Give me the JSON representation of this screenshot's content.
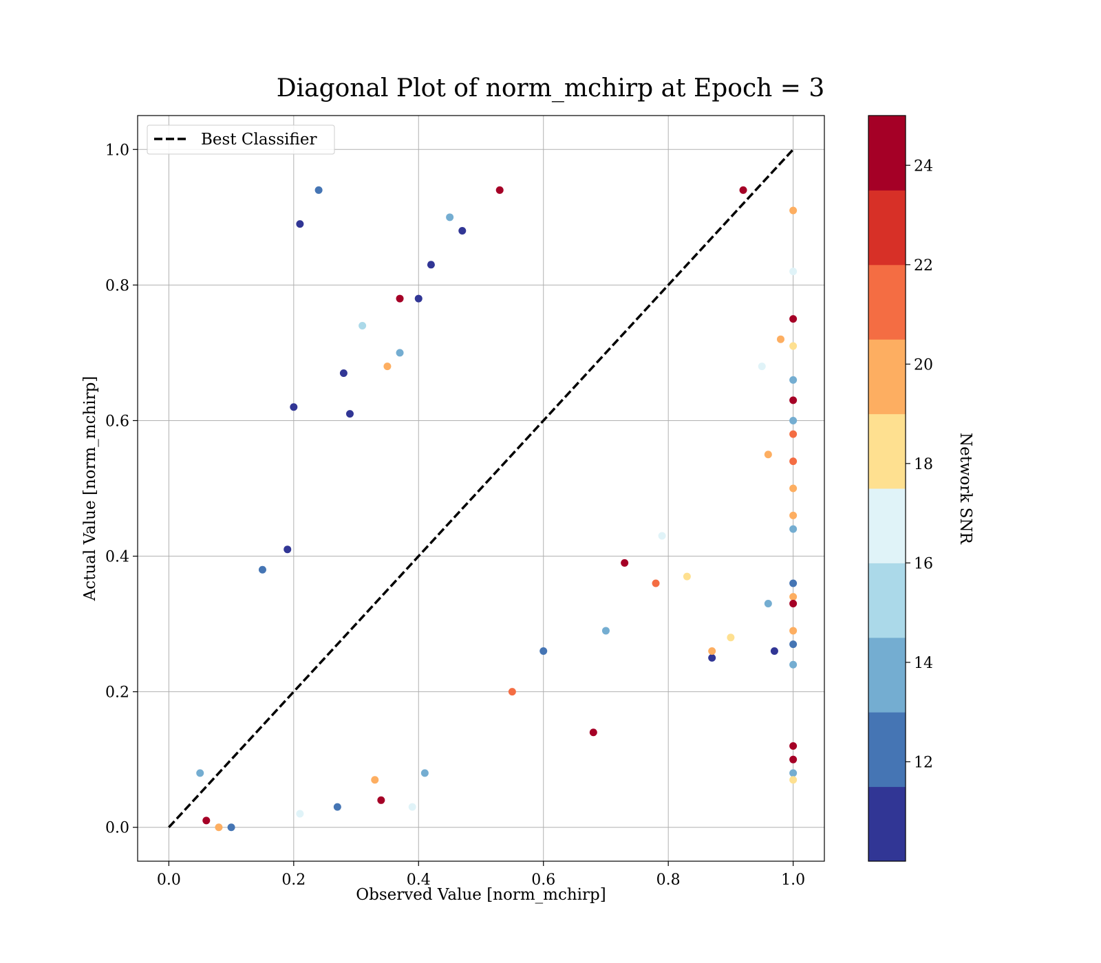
{
  "chart_data": {
    "type": "scatter",
    "title": "Diagonal Plot of norm_mchirp at Epoch = 3",
    "xlabel": "Observed Value [norm_mchirp]",
    "ylabel": "Actual Value [norm_mchirp]",
    "xlim": [
      -0.05,
      1.05
    ],
    "ylim": [
      -0.05,
      1.05
    ],
    "xticks": [
      "0.0",
      "0.2",
      "0.4",
      "0.6",
      "0.8",
      "1.0"
    ],
    "yticks": [
      "0.0",
      "0.2",
      "0.4",
      "0.6",
      "0.8",
      "1.0"
    ],
    "grid": true,
    "legend": {
      "position": "top-left",
      "entries": [
        "Best Classifier"
      ]
    },
    "reference_line": {
      "name": "Best Classifier",
      "style": "dashed",
      "color": "#000000",
      "x": [
        0,
        1
      ],
      "y": [
        0,
        1
      ]
    },
    "colorbar": {
      "label": "Network SNR",
      "range": [
        10,
        25
      ],
      "ticks": [
        "12",
        "14",
        "16",
        "18",
        "20",
        "22",
        "24"
      ],
      "bins": 10,
      "colors": [
        "#313695",
        "#4575b4",
        "#74add1",
        "#abd9e9",
        "#e0f3f8",
        "#fee090",
        "#fdae61",
        "#f46d43",
        "#d73027",
        "#a50026"
      ]
    },
    "series": [
      {
        "color_by": "Network SNR",
        "points": [
          [
            0.24,
            0.94,
            12
          ],
          [
            0.21,
            0.89,
            11
          ],
          [
            0.2,
            0.62,
            11
          ],
          [
            0.37,
            0.78,
            25
          ],
          [
            0.31,
            0.74,
            15
          ],
          [
            0.53,
            0.94,
            24
          ],
          [
            0.45,
            0.9,
            13
          ],
          [
            0.47,
            0.88,
            11
          ],
          [
            0.42,
            0.83,
            11
          ],
          [
            0.4,
            0.78,
            11
          ],
          [
            0.68,
            0.14,
            25
          ],
          [
            0.98,
            0.72,
            19
          ],
          [
            1.0,
            0.91,
            20
          ],
          [
            1.0,
            0.82,
            16
          ],
          [
            1.0,
            0.75,
            25
          ],
          [
            1.0,
            0.71,
            18
          ],
          [
            1.0,
            0.66,
            13
          ],
          [
            1.0,
            0.63,
            24
          ],
          [
            1.0,
            0.6,
            14
          ],
          [
            1.0,
            0.58,
            21
          ],
          [
            1.0,
            0.54,
            21
          ],
          [
            1.0,
            0.5,
            19
          ],
          [
            1.0,
            0.46,
            20
          ],
          [
            1.0,
            0.44,
            14
          ],
          [
            1.0,
            0.36,
            12
          ],
          [
            1.0,
            0.34,
            20
          ],
          [
            1.0,
            0.33,
            25
          ],
          [
            1.0,
            0.29,
            20
          ],
          [
            1.0,
            0.27,
            12
          ],
          [
            1.0,
            0.24,
            14
          ],
          [
            1.0,
            0.12,
            25
          ],
          [
            1.0,
            0.1,
            25
          ],
          [
            1.0,
            0.08,
            14
          ],
          [
            1.0,
            0.07,
            18
          ],
          [
            0.96,
            0.55,
            20
          ],
          [
            0.96,
            0.33,
            14
          ],
          [
            0.97,
            0.26,
            11
          ],
          [
            0.87,
            0.25,
            11
          ],
          [
            0.87,
            0.26,
            20
          ],
          [
            0.78,
            0.36,
            21
          ],
          [
            0.83,
            0.37,
            18
          ],
          [
            0.79,
            0.43,
            16
          ],
          [
            0.34,
            0.04,
            25
          ],
          [
            0.41,
            0.08,
            14
          ],
          [
            0.39,
            0.03,
            17
          ],
          [
            0.33,
            0.07,
            20
          ],
          [
            0.21,
            0.02,
            16
          ],
          [
            0.27,
            0.03,
            12
          ],
          [
            0.15,
            0.38,
            12
          ],
          [
            0.19,
            0.41,
            11
          ],
          [
            0.28,
            0.67,
            11
          ],
          [
            0.29,
            0.61,
            11
          ],
          [
            0.37,
            0.7,
            14
          ],
          [
            0.35,
            0.68,
            20
          ],
          [
            0.6,
            0.26,
            12
          ],
          [
            0.7,
            0.29,
            14
          ],
          [
            0.73,
            0.39,
            25
          ],
          [
            0.55,
            0.2,
            21
          ],
          [
            0.92,
            0.94,
            25
          ],
          [
            0.9,
            0.28,
            18
          ],
          [
            0.95,
            0.68,
            16
          ],
          [
            0.05,
            0.08,
            14
          ],
          [
            0.06,
            0.01,
            25
          ],
          [
            0.08,
            0.0,
            20
          ],
          [
            0.1,
            0.0,
            12
          ]
        ]
      }
    ]
  }
}
